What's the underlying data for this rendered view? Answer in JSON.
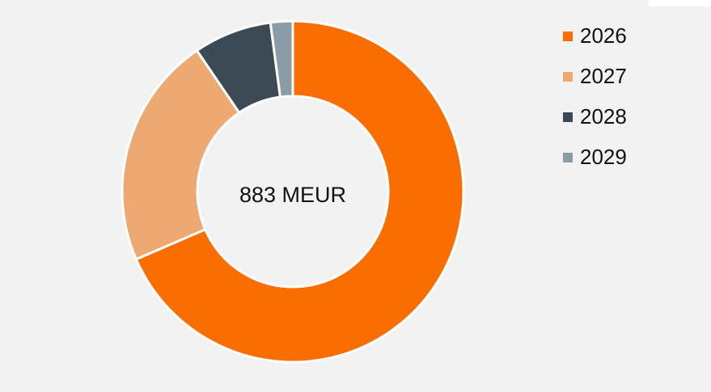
{
  "chart_data": {
    "type": "pie",
    "center_label": "883 MEUR",
    "categories": [
      "2026",
      "2027",
      "2028",
      "2029"
    ],
    "values": [
      68.5,
      22,
      7.4,
      2.1
    ],
    "colors": [
      "#fa6d00",
      "#eea872",
      "#3c4a55",
      "#8b9ca9"
    ],
    "legend": "right"
  }
}
